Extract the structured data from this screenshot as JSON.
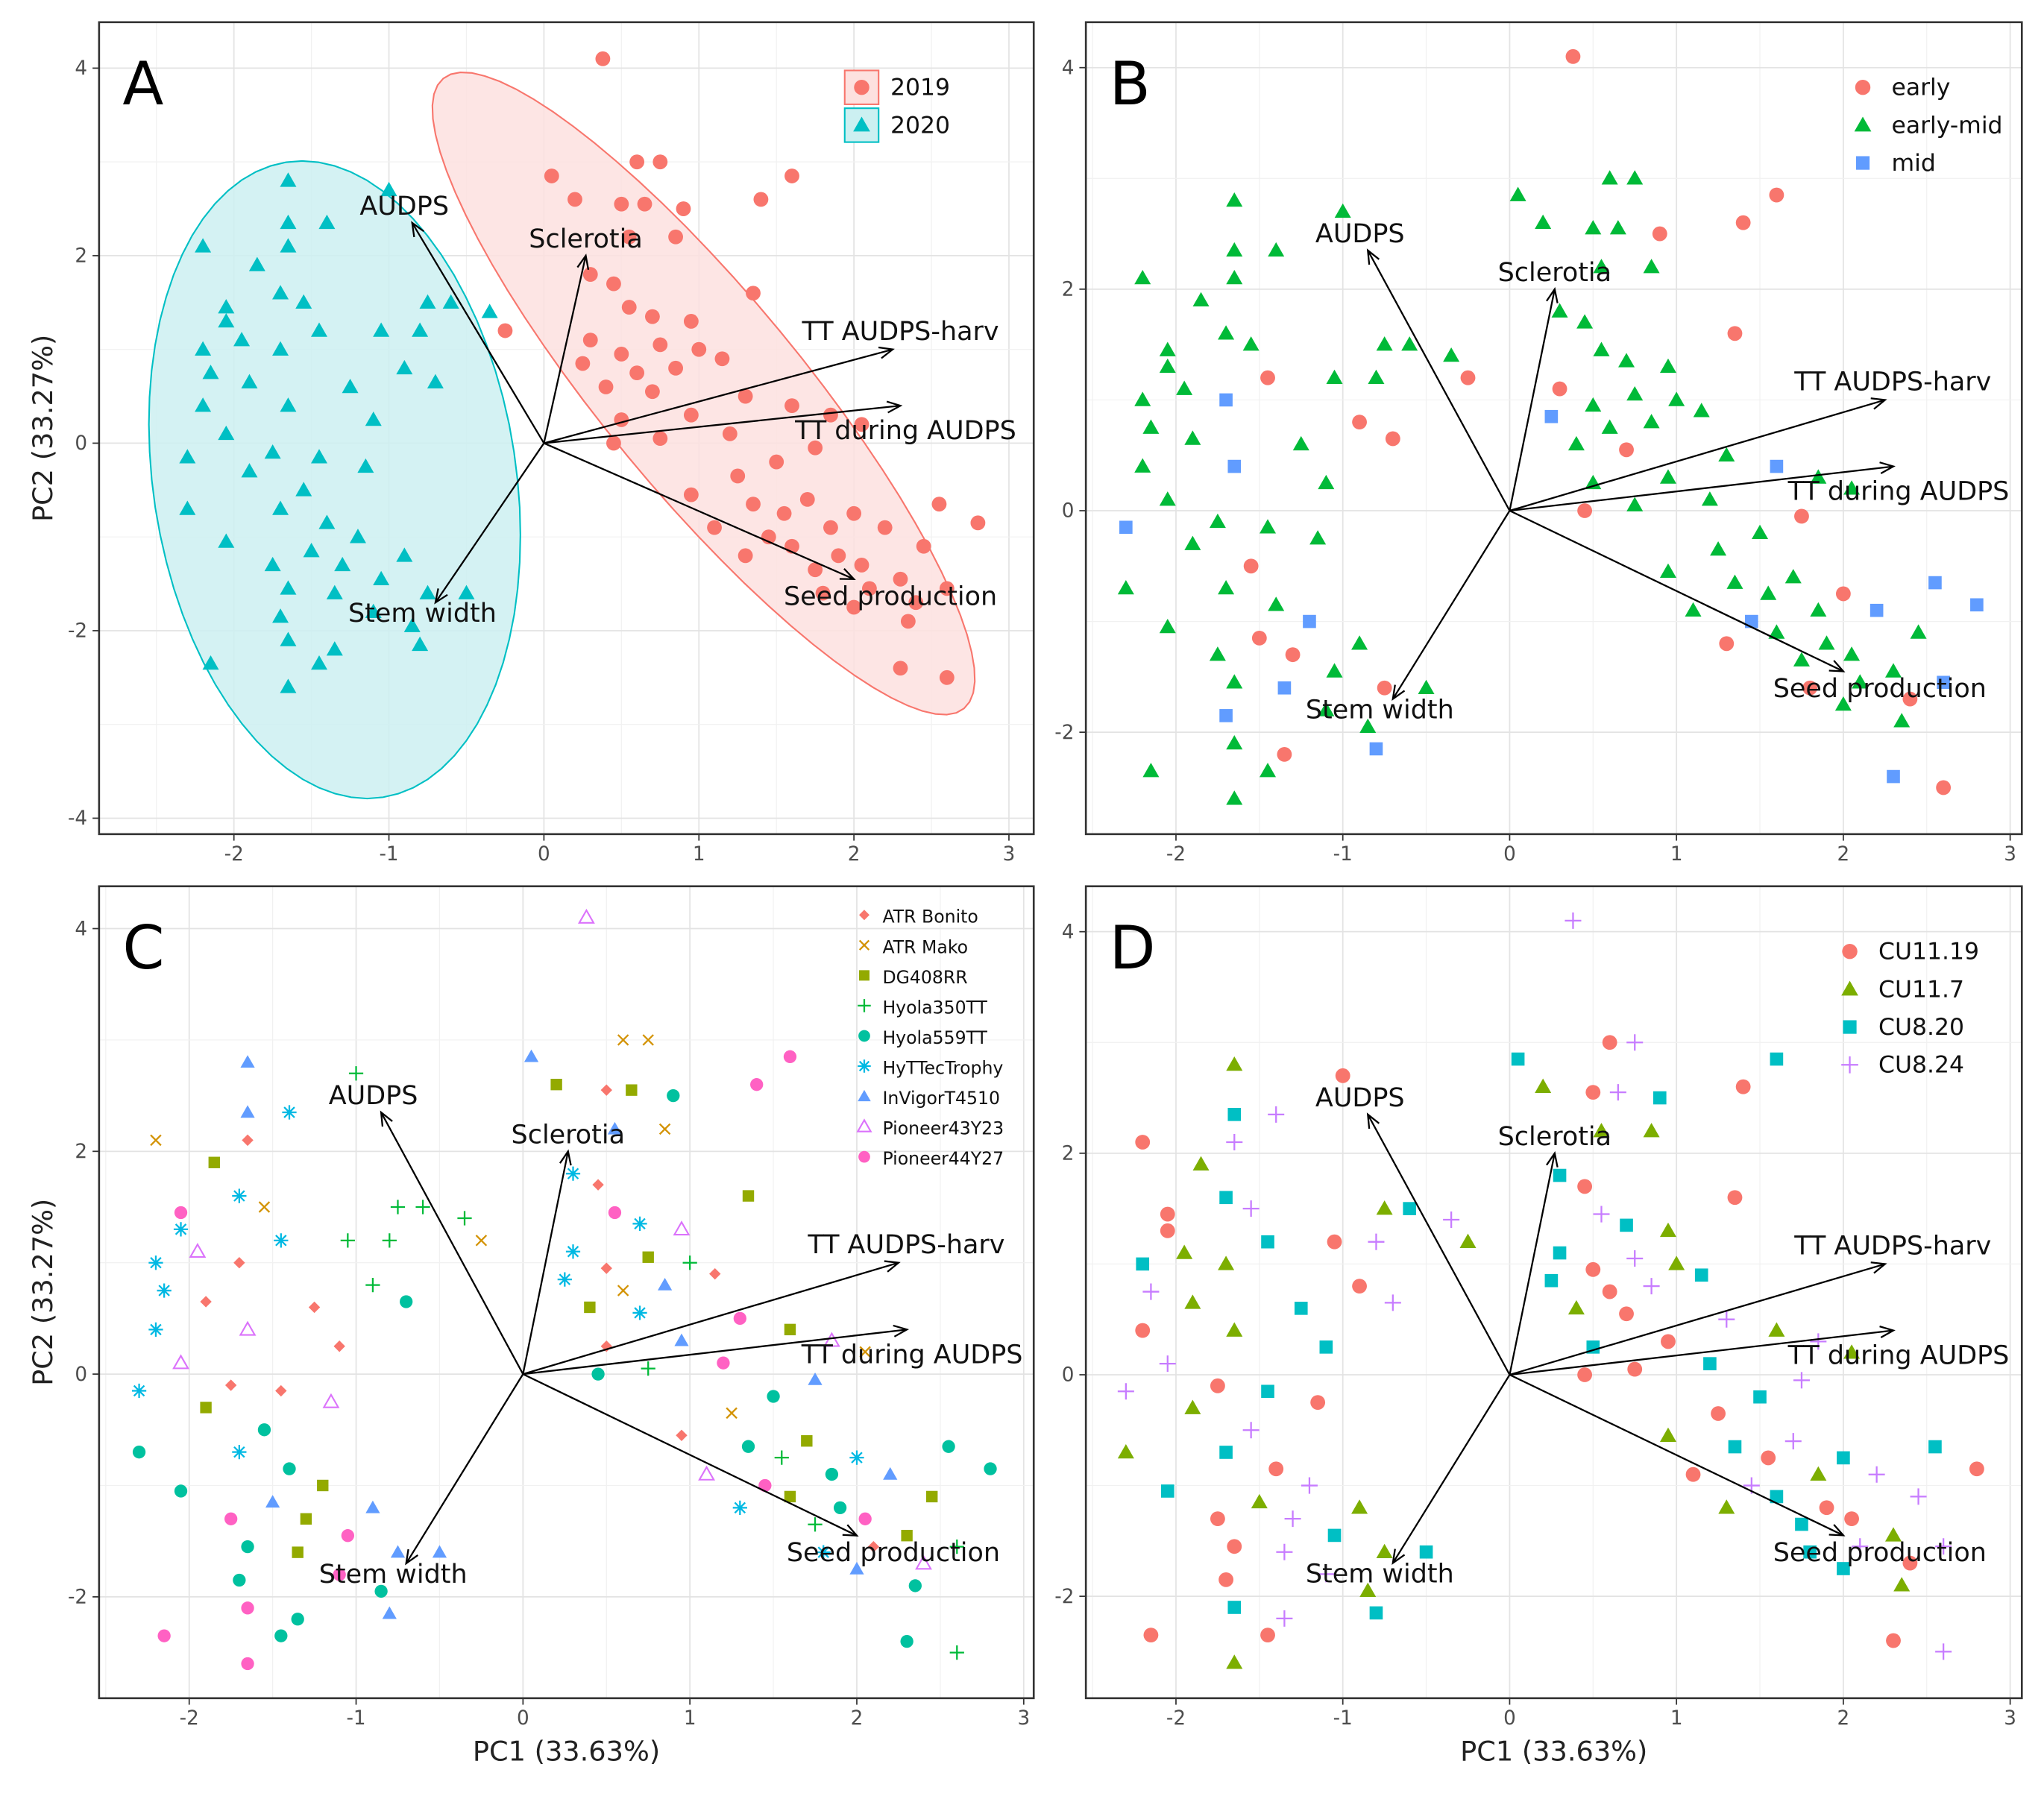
{
  "pca": {
    "loadings": [
      {
        "name": "AUDPS",
        "x": -0.85,
        "y": 2.35
      },
      {
        "name": "Sclerotia",
        "x": 0.27,
        "y": 2.0
      },
      {
        "name": "TT AUDPS-harv",
        "x": 2.25,
        "y": 1.0
      },
      {
        "name": "TT during AUDPS",
        "x": 2.3,
        "y": 0.4
      },
      {
        "name": "Seed production",
        "x": 2.0,
        "y": -1.45
      },
      {
        "name": "Stem width",
        "x": -0.7,
        "y": -1.7
      }
    ],
    "point_fields": [
      "pc1",
      "pc2",
      "year",
      "maturity",
      "cultivar",
      "site"
    ],
    "points": [
      [
        0.38,
        4.1,
        0,
        0,
        7,
        3
      ],
      [
        0.05,
        2.85,
        0,
        1,
        6,
        2
      ],
      [
        0.6,
        3.0,
        0,
        1,
        1,
        0
      ],
      [
        0.75,
        3.0,
        0,
        1,
        1,
        3
      ],
      [
        1.6,
        2.85,
        0,
        0,
        8,
        2
      ],
      [
        1.4,
        2.6,
        0,
        0,
        8,
        0
      ],
      [
        0.2,
        2.6,
        0,
        1,
        2,
        1
      ],
      [
        0.5,
        2.55,
        0,
        1,
        0,
        0
      ],
      [
        0.65,
        2.55,
        0,
        1,
        2,
        3
      ],
      [
        0.9,
        2.5,
        0,
        0,
        4,
        2
      ],
      [
        0.55,
        2.2,
        0,
        1,
        6,
        1
      ],
      [
        0.85,
        2.2,
        0,
        1,
        1,
        1
      ],
      [
        0.3,
        1.8,
        0,
        1,
        5,
        2
      ],
      [
        0.45,
        1.7,
        0,
        1,
        0,
        0
      ],
      [
        0.55,
        1.45,
        0,
        1,
        8,
        3
      ],
      [
        1.35,
        1.6,
        0,
        0,
        2,
        0
      ],
      [
        0.7,
        1.35,
        0,
        1,
        5,
        2
      ],
      [
        0.95,
        1.3,
        0,
        1,
        7,
        1
      ],
      [
        0.3,
        1.1,
        0,
        0,
        5,
        2
      ],
      [
        0.5,
        0.95,
        0,
        1,
        0,
        0
      ],
      [
        0.75,
        1.05,
        0,
        1,
        2,
        3
      ],
      [
        1.0,
        1.0,
        0,
        1,
        3,
        1
      ],
      [
        0.25,
        0.85,
        0,
        2,
        5,
        2
      ],
      [
        0.6,
        0.75,
        0,
        1,
        1,
        0
      ],
      [
        0.85,
        0.8,
        0,
        1,
        6,
        3
      ],
      [
        1.15,
        0.9,
        0,
        1,
        0,
        2
      ],
      [
        0.4,
        0.6,
        0,
        1,
        2,
        1
      ],
      [
        0.7,
        0.55,
        0,
        0,
        5,
        0
      ],
      [
        1.3,
        0.5,
        0,
        1,
        8,
        3
      ],
      [
        0.5,
        0.25,
        0,
        1,
        0,
        2
      ],
      [
        0.95,
        0.3,
        0,
        1,
        6,
        0
      ],
      [
        1.6,
        0.4,
        0,
        2,
        2,
        1
      ],
      [
        1.85,
        0.3,
        0,
        1,
        7,
        3
      ],
      [
        0.75,
        0.05,
        0,
        1,
        3,
        0
      ],
      [
        1.2,
        0.1,
        0,
        1,
        8,
        2
      ],
      [
        -0.25,
        1.2,
        0,
        0,
        1,
        1
      ],
      [
        0.45,
        0.0,
        0,
        0,
        4,
        0
      ],
      [
        1.35,
        -0.65,
        0,
        1,
        4,
        2
      ],
      [
        1.55,
        -0.75,
        0,
        1,
        3,
        0
      ],
      [
        1.7,
        -0.6,
        0,
        1,
        2,
        3
      ],
      [
        1.85,
        -0.9,
        0,
        1,
        4,
        1
      ],
      [
        2.0,
        -0.75,
        0,
        0,
        5,
        2
      ],
      [
        1.1,
        -0.9,
        0,
        1,
        7,
        0
      ],
      [
        1.45,
        -1.0,
        0,
        2,
        8,
        3
      ],
      [
        1.6,
        -1.1,
        0,
        1,
        2,
        2
      ],
      [
        1.9,
        -1.2,
        0,
        1,
        4,
        0
      ],
      [
        2.2,
        -0.9,
        0,
        2,
        6,
        3
      ],
      [
        1.3,
        -1.2,
        0,
        0,
        5,
        1
      ],
      [
        1.75,
        -1.35,
        0,
        1,
        3,
        2
      ],
      [
        2.05,
        -1.3,
        0,
        1,
        8,
        0
      ],
      [
        2.45,
        -1.1,
        0,
        1,
        2,
        3
      ],
      [
        2.55,
        -0.65,
        0,
        2,
        4,
        2
      ],
      [
        2.8,
        -0.85,
        0,
        2,
        4,
        0
      ],
      [
        2.1,
        -1.55,
        0,
        1,
        0,
        3
      ],
      [
        2.3,
        -1.45,
        0,
        1,
        2,
        1
      ],
      [
        1.8,
        -1.6,
        0,
        0,
        5,
        2
      ],
      [
        2.4,
        -1.7,
        0,
        0,
        7,
        0
      ],
      [
        2.6,
        -1.55,
        0,
        2,
        3,
        3
      ],
      [
        2.35,
        -1.9,
        0,
        1,
        4,
        1
      ],
      [
        2.0,
        -1.75,
        0,
        1,
        6,
        2
      ],
      [
        2.3,
        -2.4,
        0,
        2,
        4,
        0
      ],
      [
        2.6,
        -2.5,
        0,
        0,
        3,
        3
      ],
      [
        0.95,
        -0.55,
        0,
        1,
        0,
        1
      ],
      [
        1.25,
        -0.35,
        0,
        1,
        1,
        0
      ],
      [
        1.5,
        -0.2,
        0,
        1,
        4,
        2
      ],
      [
        1.75,
        -0.05,
        0,
        0,
        6,
        3
      ],
      [
        2.05,
        0.2,
        0,
        1,
        1,
        1
      ],
      [
        -1.65,
        2.8,
        1,
        1,
        6,
        1
      ],
      [
        -1.0,
        2.7,
        1,
        1,
        3,
        0
      ],
      [
        -1.65,
        2.35,
        1,
        1,
        6,
        2
      ],
      [
        -1.4,
        2.35,
        1,
        1,
        5,
        3
      ],
      [
        -2.2,
        2.1,
        1,
        1,
        1,
        0
      ],
      [
        -1.65,
        2.1,
        1,
        1,
        0,
        3
      ],
      [
        -1.85,
        1.9,
        1,
        1,
        2,
        1
      ],
      [
        -1.7,
        1.6,
        1,
        1,
        5,
        2
      ],
      [
        -1.55,
        1.5,
        1,
        1,
        1,
        3
      ],
      [
        -2.05,
        1.45,
        1,
        1,
        8,
        0
      ],
      [
        -0.75,
        1.5,
        1,
        1,
        3,
        1
      ],
      [
        -0.6,
        1.5,
        1,
        1,
        3,
        2
      ],
      [
        -0.35,
        1.4,
        1,
        1,
        3,
        3
      ],
      [
        -2.05,
        1.3,
        1,
        1,
        5,
        0
      ],
      [
        -1.95,
        1.1,
        1,
        1,
        7,
        1
      ],
      [
        -1.45,
        1.2,
        1,
        0,
        5,
        2
      ],
      [
        -1.05,
        1.2,
        1,
        1,
        3,
        0
      ],
      [
        -0.8,
        1.2,
        1,
        1,
        3,
        3
      ],
      [
        -2.2,
        1.0,
        1,
        1,
        5,
        2
      ],
      [
        -1.7,
        1.0,
        1,
        2,
        0,
        1
      ],
      [
        -0.9,
        0.8,
        1,
        0,
        3,
        0
      ],
      [
        -2.15,
        0.75,
        1,
        1,
        5,
        3
      ],
      [
        -1.9,
        0.65,
        1,
        1,
        0,
        1
      ],
      [
        -1.25,
        0.6,
        1,
        1,
        0,
        2
      ],
      [
        -0.7,
        0.65,
        1,
        0,
        4,
        3
      ],
      [
        -2.2,
        0.4,
        1,
        1,
        5,
        0
      ],
      [
        -1.65,
        0.4,
        1,
        2,
        7,
        1
      ],
      [
        -1.1,
        0.25,
        1,
        1,
        0,
        2
      ],
      [
        -2.05,
        0.1,
        1,
        1,
        7,
        3
      ],
      [
        -1.75,
        -0.1,
        1,
        1,
        0,
        0
      ],
      [
        -2.3,
        -0.15,
        1,
        2,
        5,
        3
      ],
      [
        -1.9,
        -0.3,
        1,
        1,
        2,
        1
      ],
      [
        -1.45,
        -0.15,
        1,
        1,
        0,
        2
      ],
      [
        -1.15,
        -0.25,
        1,
        1,
        7,
        0
      ],
      [
        -1.55,
        -0.5,
        1,
        0,
        4,
        3
      ],
      [
        -2.3,
        -0.7,
        1,
        1,
        4,
        1
      ],
      [
        -1.7,
        -0.7,
        1,
        1,
        5,
        2
      ],
      [
        -1.4,
        -0.85,
        1,
        1,
        4,
        0
      ],
      [
        -1.2,
        -1.0,
        1,
        2,
        2,
        3
      ],
      [
        -1.5,
        -1.15,
        1,
        0,
        6,
        1
      ],
      [
        -2.05,
        -1.05,
        1,
        1,
        4,
        2
      ],
      [
        -1.75,
        -1.3,
        1,
        1,
        8,
        0
      ],
      [
        -1.3,
        -1.3,
        1,
        0,
        2,
        3
      ],
      [
        -0.9,
        -1.2,
        1,
        1,
        6,
        1
      ],
      [
        -1.05,
        -1.45,
        1,
        1,
        8,
        2
      ],
      [
        -1.65,
        -1.55,
        1,
        1,
        4,
        0
      ],
      [
        -1.35,
        -1.6,
        1,
        2,
        2,
        3
      ],
      [
        -0.75,
        -1.6,
        1,
        0,
        6,
        1
      ],
      [
        -0.5,
        -1.6,
        1,
        1,
        6,
        2
      ],
      [
        -1.7,
        -1.85,
        1,
        2,
        4,
        0
      ],
      [
        -1.1,
        -1.8,
        1,
        1,
        8,
        3
      ],
      [
        -0.85,
        -1.95,
        1,
        1,
        4,
        1
      ],
      [
        -1.65,
        -2.1,
        1,
        1,
        8,
        2
      ],
      [
        -2.15,
        -2.35,
        1,
        1,
        8,
        0
      ],
      [
        -1.35,
        -2.2,
        1,
        0,
        4,
        3
      ],
      [
        -1.65,
        -2.6,
        1,
        1,
        8,
        1
      ],
      [
        -0.8,
        -2.15,
        1,
        2,
        6,
        2
      ],
      [
        -1.45,
        -2.35,
        1,
        1,
        4,
        0
      ]
    ]
  },
  "chart_data": [
    {
      "panel": "A",
      "type": "scatter",
      "color_by": "year",
      "xlabel": "",
      "ylabel": "PC2 (33.27%)",
      "xlim": [
        -2.87,
        3.16
      ],
      "ylim": [
        -4.17,
        4.49
      ],
      "xticks": [
        -2,
        -1,
        0,
        1,
        2,
        3
      ],
      "yticks": [
        -4,
        -2,
        0,
        2,
        4
      ],
      "grid": true,
      "legend_position": "top-right",
      "legend": [
        {
          "label": "2019",
          "shape": "circle",
          "color": "#F8766D"
        },
        {
          "label": "2020",
          "shape": "triangle",
          "color": "#00BFC4"
        }
      ],
      "ellipses": [
        {
          "group": "2019",
          "center": [
            1.03,
            0.53
          ],
          "major": [
            1.68,
            -3.36
          ],
          "minor": [
            0.49,
            0.67
          ],
          "color": "#F8766D",
          "fill": "#FDE1DF"
        },
        {
          "group": "2020",
          "center": [
            -1.35,
            -0.39
          ],
          "major": [
            0.21,
            -3.4
          ],
          "minor": [
            1.18,
            0.0
          ],
          "color": "#00BFC4",
          "fill": "#CCF0F1"
        }
      ]
    },
    {
      "panel": "B",
      "type": "scatter",
      "color_by": "maturity",
      "xlabel": "",
      "ylabel": "",
      "xlim": [
        -2.54,
        3.07
      ],
      "ylim": [
        -2.92,
        4.41
      ],
      "xticks": [
        -2,
        -1,
        0,
        1,
        2,
        3
      ],
      "yticks": [
        -2,
        0,
        2,
        4
      ],
      "grid": true,
      "legend_position": "top-right",
      "legend": [
        {
          "label": "early",
          "shape": "circle",
          "color": "#F8766D"
        },
        {
          "label": "early-mid",
          "shape": "triangle",
          "color": "#00BA38"
        },
        {
          "label": "mid",
          "shape": "square",
          "color": "#619CFF"
        }
      ]
    },
    {
      "panel": "C",
      "type": "scatter",
      "color_by": "cultivar",
      "xlabel": "PC1 (33.63%)",
      "ylabel": "PC2 (33.27%)",
      "xlim": [
        -2.54,
        3.06
      ],
      "ylim": [
        -2.91,
        4.38
      ],
      "xticks": [
        -2,
        -1,
        0,
        1,
        2,
        3
      ],
      "yticks": [
        -2,
        0,
        2,
        4
      ],
      "grid": true,
      "legend_position": "top-right",
      "legend": [
        {
          "label": "ATR Bonito",
          "shape": "diamond",
          "color": "#F8766D"
        },
        {
          "label": "ATR Mako",
          "shape": "x",
          "color": "#D39200"
        },
        {
          "label": "DG408RR",
          "shape": "square",
          "color": "#93AA00"
        },
        {
          "label": "Hyola350TT",
          "shape": "plus",
          "color": "#00BA38"
        },
        {
          "label": "Hyola559TT",
          "shape": "circle",
          "color": "#00C19F"
        },
        {
          "label": "HyTTecTrophy",
          "shape": "asterisk",
          "color": "#00B9E3"
        },
        {
          "label": "InVigorT4510",
          "shape": "triangle",
          "color": "#619CFF"
        },
        {
          "label": "Pioneer43Y23",
          "shape": "open-triangle",
          "color": "#DB72FB"
        },
        {
          "label": "Pioneer44Y27",
          "shape": "circle",
          "color": "#FF61C3"
        }
      ]
    },
    {
      "panel": "D",
      "type": "scatter",
      "color_by": "site",
      "xlabel": "PC1 (33.63%)",
      "ylabel": "",
      "xlim": [
        -2.54,
        3.07
      ],
      "ylim": [
        -2.92,
        4.41
      ],
      "xticks": [
        -2,
        -1,
        0,
        1,
        2,
        3
      ],
      "yticks": [
        -2,
        0,
        2,
        4
      ],
      "grid": true,
      "legend_position": "top-right",
      "legend": [
        {
          "label": "CU11.19",
          "shape": "circle",
          "color": "#F8766D"
        },
        {
          "label": "CU11.7",
          "shape": "triangle",
          "color": "#7CAE00"
        },
        {
          "label": "CU8.20",
          "shape": "square",
          "color": "#00BFC4"
        },
        {
          "label": "CU8.24",
          "shape": "plus",
          "color": "#C77CFF"
        }
      ]
    }
  ]
}
